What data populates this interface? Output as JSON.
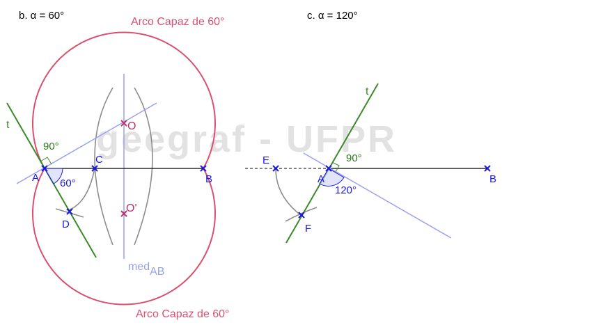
{
  "panel_b": {
    "title": "b. α = 60°",
    "arc_top": "Arco Capaz de 60°",
    "arc_bottom": "Arco Capaz de 60°",
    "watermark": "geegraf - UFPR",
    "tangent": "t",
    "angle_right": "90°",
    "angle_given": "60°",
    "points": {
      "A": "A",
      "B": "B",
      "C": "C",
      "D": "D",
      "O": "O",
      "O2": "O'"
    },
    "bisector_main": "med",
    "bisector_sub": "AB"
  },
  "panel_c": {
    "title": "c. α = 120°",
    "tangent": "t",
    "angle_right": "90°",
    "angle_given": "120°",
    "points": {
      "A": "A",
      "B": "B",
      "E": "E",
      "F": "F"
    }
  },
  "colors": {
    "arc": "#d9506f",
    "line": "#000000",
    "tangent": "#3b8a2a",
    "mediatrix": "#9aa0f0",
    "construction": "#8c8c8c",
    "point": "#1a1adf",
    "center": "#c0306a",
    "angle_text": "#1a1adf",
    "right_angle_text": "#2a7a1a"
  }
}
